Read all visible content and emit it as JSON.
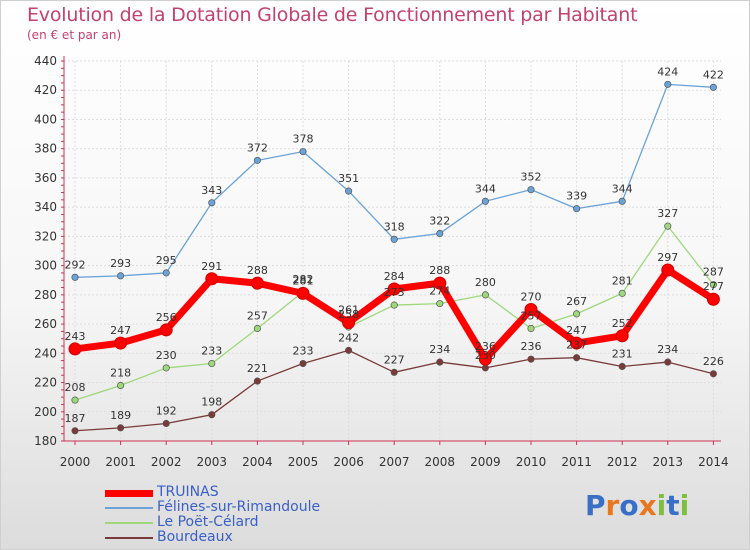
{
  "title": "Evolution de la Dotation Globale de Fonctionnement par Habitant",
  "subtitle": "(en € et par an)",
  "logo": {
    "letters": [
      "P",
      "r",
      "o",
      "x",
      "i",
      "t",
      "i"
    ],
    "colors": [
      "#3a6fc8",
      "#e87722",
      "#3a6fc8",
      "#e87722",
      "#7fbf3f",
      "#3a6fc8",
      "#7fbf3f"
    ]
  },
  "chart_data": {
    "type": "line",
    "x": [
      2000,
      2001,
      2002,
      2003,
      2004,
      2005,
      2006,
      2007,
      2008,
      2009,
      2010,
      2011,
      2012,
      2013,
      2014
    ],
    "ylim": [
      180,
      440
    ],
    "yticks": [
      180,
      200,
      220,
      240,
      260,
      280,
      300,
      320,
      340,
      360,
      380,
      400,
      420,
      440
    ],
    "grid": true,
    "legend_position": "bottom-left",
    "series": [
      {
        "name": "TRUINAS",
        "color": "#ff0000",
        "values": [
          243,
          247,
          256,
          291,
          288,
          281,
          261,
          284,
          288,
          236,
          270,
          247,
          252,
          297,
          277
        ]
      },
      {
        "name": "Félines-sur-Rimandoule",
        "color": "#6aa3d8",
        "values": [
          292,
          293,
          295,
          343,
          372,
          378,
          351,
          318,
          322,
          344,
          352,
          339,
          344,
          424,
          422
        ]
      },
      {
        "name": "Le Poët-Célard",
        "color": "#9ed77c",
        "values": [
          208,
          218,
          230,
          233,
          257,
          282,
          258,
          273,
          274,
          280,
          257,
          267,
          281,
          327,
          287
        ]
      },
      {
        "name": "Bourdeaux",
        "color": "#7a3a3a",
        "values": [
          187,
          189,
          192,
          198,
          221,
          233,
          242,
          227,
          234,
          230,
          236,
          237,
          231,
          234,
          226
        ]
      }
    ]
  }
}
